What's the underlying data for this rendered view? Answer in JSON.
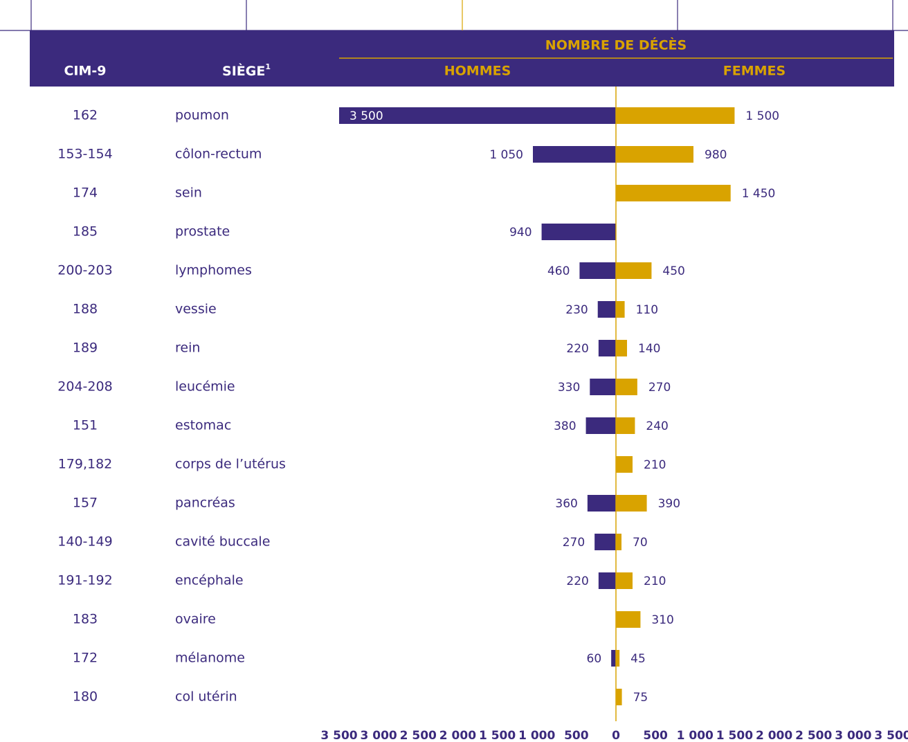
{
  "chart_data": {
    "type": "diverging_bar",
    "code_header": "CIM-9",
    "site_header": "SIÈGE",
    "site_header_footnote": "1",
    "group_title": "NOMBRE DE DÉCÈS",
    "codes": [
      "162",
      "153-154",
      "174",
      "185",
      "200-203",
      "188",
      "189",
      "204-208",
      "151",
      "179,182",
      "157",
      "140-149",
      "191-192",
      "183",
      "172",
      "180"
    ],
    "categories": [
      "poumon",
      "côlon-rectum",
      "sein",
      "prostate",
      "lymphomes",
      "vessie",
      "rein",
      "leucémie",
      "estomac",
      "corps de l’utérus",
      "pancréas",
      "cavité buccale",
      "encéphale",
      "ovaire",
      "mélanome",
      "col utérin"
    ],
    "series": [
      {
        "name": "HOMMES",
        "color": "#3b2a7d",
        "side": "left",
        "values": [
          3500,
          1050,
          null,
          940,
          460,
          230,
          220,
          330,
          380,
          null,
          360,
          270,
          220,
          null,
          60,
          null
        ],
        "value_labels": [
          "3 500",
          "1 050",
          null,
          "940",
          "460",
          "230",
          "220",
          "330",
          "380",
          null,
          "360",
          "270",
          "220",
          null,
          "60",
          null
        ]
      },
      {
        "name": "FEMMES",
        "color": "#d9a300",
        "side": "right",
        "values": [
          1500,
          980,
          1450,
          null,
          450,
          110,
          140,
          270,
          240,
          210,
          390,
          70,
          210,
          310,
          45,
          75
        ],
        "value_labels": [
          "1 500",
          "980",
          "1 450",
          null,
          "450",
          "110",
          "140",
          "270",
          "240",
          "210",
          "390",
          "70",
          "210",
          "310",
          "45",
          "75"
        ]
      }
    ],
    "xlim": [
      0,
      3500
    ],
    "xticks_hommes": [
      {
        "value": 3500,
        "label": "3 500"
      },
      {
        "value": 3000,
        "label": "3 000"
      },
      {
        "value": 2500,
        "label": "2 500"
      },
      {
        "value": 2000,
        "label": "2 000"
      },
      {
        "value": 1500,
        "label": "1 500"
      },
      {
        "value": 1000,
        "label": "1 000"
      },
      500
    ],
    "xticks_femmes": [
      0,
      500,
      {
        "value": 1000,
        "label": "1 000"
      },
      {
        "value": 1500,
        "label": "1 500"
      },
      {
        "value": 2000,
        "label": "2 000"
      },
      {
        "value": 2500,
        "label": "2 500"
      },
      {
        "value": 3000,
        "label": "3 000"
      },
      {
        "value": 3500,
        "label": "3 500"
      }
    ]
  }
}
